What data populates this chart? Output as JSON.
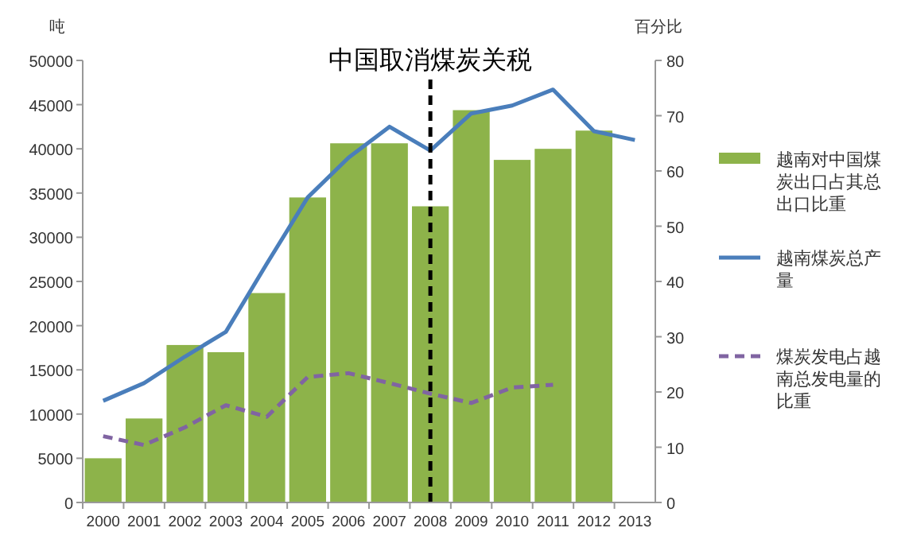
{
  "chart_data": {
    "type": "bar",
    "ylabel": "吨",
    "y2label": "百分比",
    "categories": [
      "2000",
      "2001",
      "2002",
      "2003",
      "2004",
      "2005",
      "2006",
      "2007",
      "2008",
      "2009",
      "2010",
      "2011",
      "2012",
      "2013"
    ],
    "series": [
      {
        "name": "越南对中国煤炭出口占其总出口比重",
        "axis": "y2",
        "color": "#8db34a",
        "values": [
          8,
          15.2,
          28.5,
          27.2,
          37.9,
          55.2,
          65,
          65,
          53.6,
          71,
          62,
          64,
          67.3,
          null
        ]
      },
      {
        "name": "越南煤炭总产量",
        "type": "line",
        "color": "#4a7ebb",
        "line_style": "solid",
        "values": [
          11500,
          13500,
          16500,
          19300,
          27000,
          34500,
          39000,
          42500,
          39800,
          44000,
          44900,
          46700,
          42000,
          41000
        ]
      },
      {
        "name": "煤炭发电占越南总发电量的比重",
        "type": "line",
        "axis": "y2",
        "color": "#8064a2",
        "line_style": "dashed",
        "values": [
          12,
          10.4,
          13.6,
          17.6,
          15.5,
          22.7,
          23.4,
          21.6,
          19.7,
          18,
          20.8,
          21.3,
          null,
          null
        ]
      }
    ],
    "ylim": [
      0,
      50000
    ],
    "yticks": [
      0,
      5000,
      10000,
      15000,
      20000,
      25000,
      30000,
      35000,
      40000,
      45000,
      50000
    ],
    "y2lim": [
      0,
      80
    ],
    "y2ticks": [
      0,
      10,
      20,
      30,
      40,
      50,
      60,
      70,
      80
    ],
    "ref_lines": [
      {
        "axis": "x",
        "value": "2008",
        "label": "中国取消煤炭关税",
        "color": "#000000",
        "line_style": "dashed"
      }
    ],
    "legend": "right",
    "marker": "none"
  }
}
